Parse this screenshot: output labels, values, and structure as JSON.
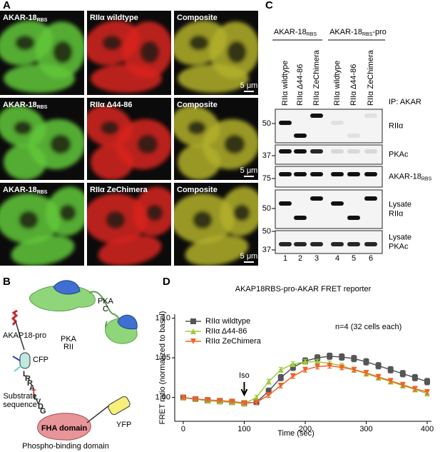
{
  "panels": {
    "a": "A",
    "b": "B",
    "c": "C",
    "d": "D"
  },
  "panel_a": {
    "rows": [
      {
        "cells": [
          {
            "main": "AKAR-18",
            "sub": "RBS"
          },
          {
            "main": "RIIα wildtype"
          },
          {
            "main": "Composite"
          }
        ],
        "scale_bar": "5 μm"
      },
      {
        "cells": [
          {
            "main": "AKAR-18",
            "sub": "RBS"
          },
          {
            "main": "RIIα Δ44-86"
          },
          {
            "main": "Composite"
          }
        ],
        "scale_bar": "5 μm"
      },
      {
        "cells": [
          {
            "main": "AKAR-18",
            "sub": "RBS"
          },
          {
            "main": "RIIα ZeChimera"
          },
          {
            "main": "Composite"
          }
        ],
        "scale_bar": "5 μm"
      }
    ]
  },
  "panel_b": {
    "pka_rii": [
      "PKA",
      "RII"
    ],
    "pka_c": [
      "PKA",
      "C"
    ],
    "akap": "AKAP18-pro",
    "cfp": "CFP",
    "sequence": [
      "L",
      "R",
      "R",
      "A",
      "T",
      "L",
      "V",
      "D",
      "G"
    ],
    "highlight": 4,
    "substrate": [
      "Substrate",
      "sequence"
    ],
    "fha": "FHA domain",
    "yfp": "YFP",
    "phospho": "Phospho-binding domain"
  },
  "panel_c": {
    "groups": [
      {
        "main": "AKAR-18",
        "sub": "RBS",
        "tail": ""
      },
      {
        "main": "AKAR-18",
        "sub": "RBS",
        "tail": "-pro"
      }
    ],
    "lanes": [
      "RIIα wildtype",
      "RIIα Δ44-86",
      "RIIα ZeChimera",
      "RIIα wildtype",
      "RIIα Δ44-86",
      "RIIα ZeChimera"
    ],
    "ip": "IP: AKAR",
    "blots": [
      {
        "label": [
          {
            "main": "RIIα",
            "sub": ""
          }
        ],
        "markers": [
          "50"
        ]
      },
      {
        "label": [
          {
            "main": "PKAc",
            "sub": ""
          }
        ],
        "markers": [
          "37"
        ]
      },
      {
        "label": [
          {
            "main": "AKAR-18",
            "sub": "RBS"
          }
        ],
        "markers": [
          "75"
        ]
      },
      {
        "label": [
          {
            "main": "Lysate",
            "sub": ""
          },
          {
            "main": "RIIα",
            "sub": ""
          }
        ],
        "markers": [
          "50"
        ]
      },
      {
        "label": [
          {
            "main": "Lysate",
            "sub": ""
          },
          {
            "main": "PKAc",
            "sub": ""
          }
        ],
        "markers": [
          "50",
          "37"
        ]
      }
    ],
    "lane_numbers": [
      "1",
      "2",
      "3",
      "4",
      "5",
      "6"
    ]
  },
  "chart_data": {
    "type": "line",
    "title": "AKAP18RBS-pro-AKAR FRET reporter",
    "x_label": "Time (sec)",
    "y_label": "FRET ratio (normalized to basel)",
    "annotations": [
      {
        "text": "n=4 (32 cells each)"
      },
      {
        "text": "Iso",
        "x": 100
      }
    ],
    "x": [
      0,
      20,
      40,
      60,
      80,
      100,
      120,
      140,
      160,
      180,
      200,
      220,
      240,
      260,
      280,
      300,
      320,
      340,
      360,
      380,
      400
    ],
    "series": [
      {
        "name": "RIIα wildtype",
        "color": "#555555",
        "marker": "square",
        "values": [
          1.0,
          0.998,
          0.996,
          0.995,
          0.994,
          0.993,
          0.994,
          1.008,
          1.025,
          1.038,
          1.046,
          1.05,
          1.052,
          1.051,
          1.049,
          1.045,
          1.04,
          1.035,
          1.03,
          1.025,
          1.02
        ],
        "errors": [
          0.003,
          0.003,
          0.003,
          0.003,
          0.003,
          0.003,
          0.003,
          0.004,
          0.004,
          0.004,
          0.004,
          0.004,
          0.004,
          0.004,
          0.004,
          0.004,
          0.004,
          0.004,
          0.004,
          0.004,
          0.004
        ]
      },
      {
        "name": "RIIα Δ44-86",
        "color": "#9ccc3c",
        "marker": "triangle-up",
        "values": [
          1.0,
          0.998,
          0.996,
          0.995,
          0.994,
          0.992,
          1.0,
          1.02,
          1.035,
          1.042,
          1.045,
          1.045,
          1.043,
          1.04,
          1.035,
          1.03,
          1.025,
          1.02,
          1.015,
          1.01,
          1.005
        ],
        "errors": [
          0.002,
          0.002,
          0.002,
          0.002,
          0.002,
          0.002,
          0.003,
          0.003,
          0.003,
          0.003,
          0.003,
          0.003,
          0.003,
          0.003,
          0.003,
          0.003,
          0.003,
          0.003,
          0.003,
          0.003,
          0.003
        ]
      },
      {
        "name": "RIIα ZeChimera",
        "color": "#f0622a",
        "marker": "triangle-down",
        "values": [
          1.0,
          0.998,
          0.997,
          0.996,
          0.995,
          0.993,
          0.994,
          1.003,
          1.015,
          1.027,
          1.035,
          1.039,
          1.04,
          1.038,
          1.035,
          1.031,
          1.026,
          1.021,
          1.016,
          1.011,
          1.007
        ],
        "errors": [
          0.002,
          0.002,
          0.002,
          0.002,
          0.002,
          0.002,
          0.003,
          0.003,
          0.003,
          0.003,
          0.003,
          0.003,
          0.003,
          0.003,
          0.003,
          0.003,
          0.003,
          0.003,
          0.003,
          0.003,
          0.003
        ]
      }
    ],
    "xlim": [
      -14,
      407
    ],
    "ylim": [
      0.97,
      1.105
    ],
    "xticks": [
      0,
      100,
      200,
      300,
      400
    ],
    "yticks": [
      {
        "value": 1.0,
        "label": "1.00"
      },
      {
        "value": 1.05,
        "label": "1.05"
      },
      {
        "value": 1.1,
        "label": "1.10"
      }
    ],
    "legend": "upper left",
    "grid": false
  }
}
